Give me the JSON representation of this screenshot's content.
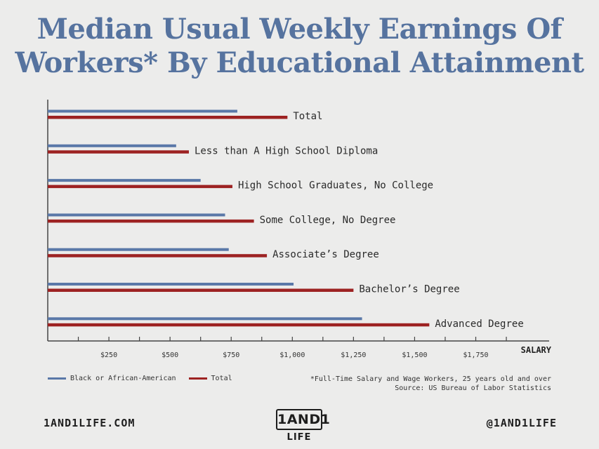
{
  "title": "Median Usual Weekly Earnings Of Workers* By Educational Attainment",
  "chart_data": {
    "type": "bar",
    "orientation": "horizontal",
    "categories": [
      "Total",
      "Less than A High School Diploma",
      "High School Graduates, No College",
      "Some College, No Degree",
      "Associate’s Degree",
      "Bachelor’s Degree",
      "Advanced Degree"
    ],
    "series": [
      {
        "name": "Black or African-American",
        "color": "#5a78a8",
        "values": [
          775,
          525,
          625,
          725,
          740,
          1005,
          1285
        ]
      },
      {
        "name": "Total",
        "color": "#9d2222",
        "values": [
          980,
          577,
          755,
          843,
          896,
          1250,
          1560
        ]
      }
    ],
    "xlim": [
      0,
      2050
    ],
    "xticks": [
      250,
      500,
      750,
      1000,
      1250,
      1500,
      1750
    ],
    "xtick_labels": [
      "$250",
      "$500",
      "$750",
      "$1,000",
      "$1,250",
      "$1,500",
      "$1,750"
    ],
    "xlabel": "SALARY",
    "ylabel": "",
    "legend": "bottom-left"
  },
  "notes": {
    "line1": "*Full-Time Salary and Wage Workers, 25 years old and over",
    "line2": "Source: US Bureau of Labor Statistics"
  },
  "footer": {
    "website": "1AND1LIFE.COM",
    "handle": "@1AND1LIFE",
    "logo_top": "1AND1",
    "logo_bottom": "LIFE"
  }
}
